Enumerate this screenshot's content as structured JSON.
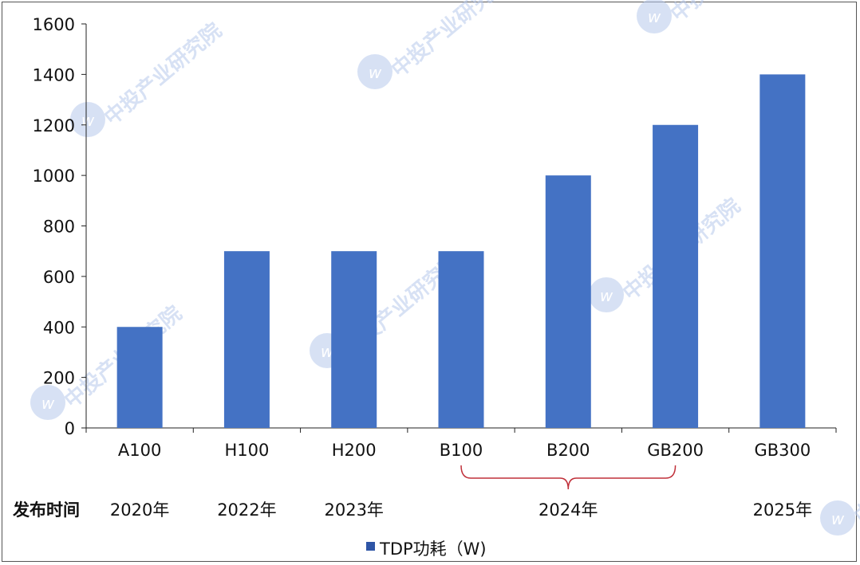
{
  "chart_data": {
    "type": "bar",
    "categories": [
      "A100",
      "H100",
      "H200",
      "B100",
      "B200",
      "GB200",
      "GB300"
    ],
    "series": [
      {
        "name": "TDP功耗（W)",
        "values": [
          400,
          700,
          700,
          700,
          1000,
          1200,
          1400
        ]
      }
    ],
    "ylim": [
      0,
      1600
    ],
    "yticks": [
      0,
      200,
      400,
      600,
      800,
      1000,
      1200,
      1400,
      1600
    ],
    "grid": false,
    "legend_position": "bottom",
    "release_row": {
      "label": "发布时间",
      "groups": [
        {
          "year": "2020年",
          "from": 0,
          "to": 0
        },
        {
          "year": "2022年",
          "from": 1,
          "to": 1
        },
        {
          "year": "2023年",
          "from": 2,
          "to": 2
        },
        {
          "year": "2024年",
          "from": 3,
          "to": 5
        },
        {
          "year": "2025年",
          "from": 6,
          "to": 6
        }
      ]
    }
  },
  "watermark": {
    "text": "中投产业研究院"
  },
  "colors": {
    "bar": "#4472C4",
    "legend_marker": "#2F55A6",
    "bracket": "#C0303A",
    "axis": "#222222",
    "watermark": "#B7C9EC"
  }
}
